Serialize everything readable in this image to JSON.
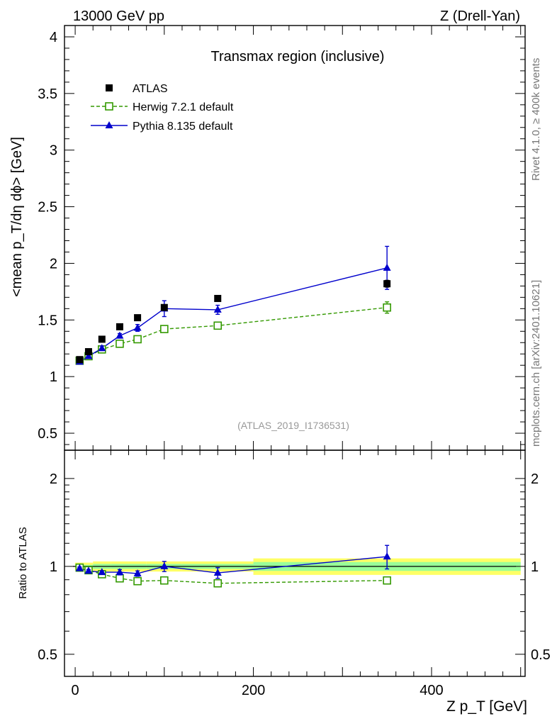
{
  "header": {
    "left_label": "13000 GeV pp",
    "right_label": "Z (Drell-Yan)"
  },
  "side_labels": {
    "rivet": "Rivet 4.1.0, ≥ 400k events",
    "mcplots": "mcplots.cern.ch [arXiv:2401.10621]"
  },
  "watermark": "(ATLAS_2019_I1736531)",
  "colors": {
    "atlas": "#000000",
    "herwig": "#339900",
    "pythia": "#0000cc",
    "band_inner": "#99ff99",
    "band_outer": "#ffff66",
    "watermark": "#999999",
    "side_text": "#777777"
  },
  "chart_data": [
    {
      "type": "scatter",
      "title": "Transmax region (inclusive)",
      "xlabel": "Z p_T [GeV]",
      "ylabel": "<mean p_T/dη dϕ> [GeV]",
      "xlim": [
        -12,
        505
      ],
      "ylim": [
        0.35,
        4.1
      ],
      "yticks": [
        0.5,
        1,
        1.5,
        2,
        2.5,
        3,
        3.5,
        4
      ],
      "ytick_labels": [
        "0.5",
        "1",
        "1.5",
        "2",
        "2.5",
        "3",
        "3.5",
        "4"
      ],
      "legend_position": "top-left",
      "series": [
        {
          "name": "ATLAS",
          "style": "black-square",
          "x": [
            5,
            15,
            30,
            50,
            70,
            100,
            160,
            350
          ],
          "y": [
            1.15,
            1.22,
            1.33,
            1.44,
            1.52,
            1.61,
            1.69,
            1.82
          ],
          "err": [
            0.01,
            0.01,
            0.01,
            0.01,
            0.01,
            0.02,
            0.02,
            0.03
          ],
          "xerr": [
            5,
            5,
            10,
            10,
            10,
            20,
            40,
            150
          ]
        },
        {
          "name": "Herwig 7.2.1 default",
          "style": "green-open-square-dashed",
          "x": [
            5,
            15,
            30,
            50,
            70,
            100,
            160,
            350
          ],
          "y": [
            1.14,
            1.18,
            1.24,
            1.29,
            1.33,
            1.42,
            1.45,
            1.61
          ],
          "err": [
            0.01,
            0.01,
            0.01,
            0.01,
            0.01,
            0.01,
            0.01,
            0.05
          ]
        },
        {
          "name": "Pythia 8.135 default",
          "style": "blue-triangle-solid",
          "x": [
            5,
            15,
            30,
            50,
            70,
            100,
            160,
            350
          ],
          "y": [
            1.13,
            1.18,
            1.25,
            1.36,
            1.43,
            1.6,
            1.59,
            1.96
          ],
          "err": [
            0.01,
            0.01,
            0.02,
            0.02,
            0.03,
            0.07,
            0.04,
            0.19
          ]
        }
      ]
    },
    {
      "type": "scatter",
      "title": "",
      "xlabel": "Z p_T [GeV]",
      "ylabel": "Ratio to ATLAS",
      "xlim": [
        -12,
        505
      ],
      "ylim": [
        0.42,
        2.5
      ],
      "yscale": "log",
      "xticks": [
        0,
        200,
        400
      ],
      "xtick_labels": [
        "0",
        "200",
        "400"
      ],
      "yticks": [
        0.5,
        1,
        2
      ],
      "ytick_labels": [
        "0.5",
        "1",
        "2"
      ],
      "band": {
        "edges": [
          0,
          10,
          20,
          40,
          60,
          80,
          120,
          200,
          500
        ],
        "inner": [
          0.012,
          0.012,
          0.02,
          0.02,
          0.02,
          0.02,
          0.02,
          0.035
        ],
        "outer": [
          0.03,
          0.03,
          0.04,
          0.04,
          0.04,
          0.04,
          0.04,
          0.065
        ]
      },
      "series": [
        {
          "name": "Herwig 7.2.1 default",
          "x": [
            5,
            15,
            30,
            50,
            70,
            100,
            160,
            350
          ],
          "y": [
            0.99,
            0.97,
            0.94,
            0.91,
            0.89,
            0.895,
            0.875,
            0.895
          ],
          "err": [
            0.01,
            0.01,
            0.01,
            0.01,
            0.01,
            0.01,
            0.01,
            0.02
          ]
        },
        {
          "name": "Pythia 8.135 default",
          "x": [
            5,
            15,
            30,
            50,
            70,
            100,
            160,
            350
          ],
          "y": [
            0.985,
            0.965,
            0.955,
            0.955,
            0.945,
            1.0,
            0.95,
            1.08
          ],
          "err": [
            0.01,
            0.01,
            0.01,
            0.02,
            0.02,
            0.04,
            0.04,
            0.1
          ]
        }
      ]
    }
  ]
}
